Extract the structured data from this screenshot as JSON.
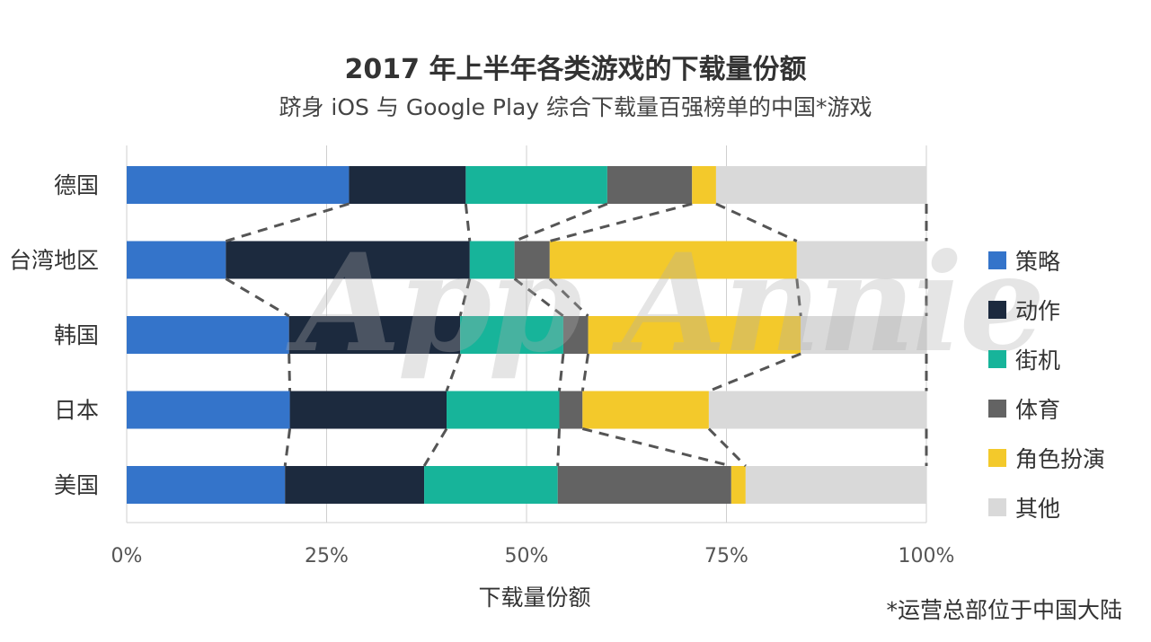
{
  "title": "2017 年上半年各类游戏的下载量份额",
  "subtitle": "跻身 iOS 与 Google Play 综合下载量百强榜单的中国*游戏",
  "footnote": "*运营总部位于中国大陆",
  "watermark": "App Annie",
  "chart_data": {
    "type": "bar",
    "orientation": "horizontal",
    "stacked": true,
    "normalized": true,
    "categories": [
      "德国",
      "台湾地区",
      "韩国",
      "日本",
      "美国"
    ],
    "xlabel": "下载量份额",
    "ylabel": "",
    "xlim": [
      0,
      100
    ],
    "xticks": [
      "0%",
      "25%",
      "50%",
      "75%",
      "100%"
    ],
    "xtick_values": [
      0,
      25,
      50,
      75,
      100
    ],
    "grid": "vertical",
    "legend_position": "right",
    "connector_lines": "dashed",
    "series": [
      {
        "name": "策略",
        "color": "#3474CA",
        "values": [
          27.8,
          12.4,
          20.3,
          20.4,
          19.8
        ]
      },
      {
        "name": "动作",
        "color": "#1C2A3E",
        "values": [
          14.6,
          30.5,
          21.4,
          19.6,
          17.4
        ]
      },
      {
        "name": "街机",
        "color": "#17B49A",
        "values": [
          17.7,
          5.6,
          12.9,
          14.1,
          16.7
        ]
      },
      {
        "name": "体育",
        "color": "#636363",
        "values": [
          10.6,
          4.4,
          3.1,
          2.9,
          21.7
        ]
      },
      {
        "name": "角色扮演",
        "color": "#F3C92B",
        "values": [
          3.0,
          30.9,
          26.6,
          15.8,
          1.8
        ]
      },
      {
        "name": "其他",
        "color": "#D9D9D9",
        "values": [
          26.3,
          16.2,
          15.7,
          27.2,
          22.6
        ]
      }
    ]
  }
}
